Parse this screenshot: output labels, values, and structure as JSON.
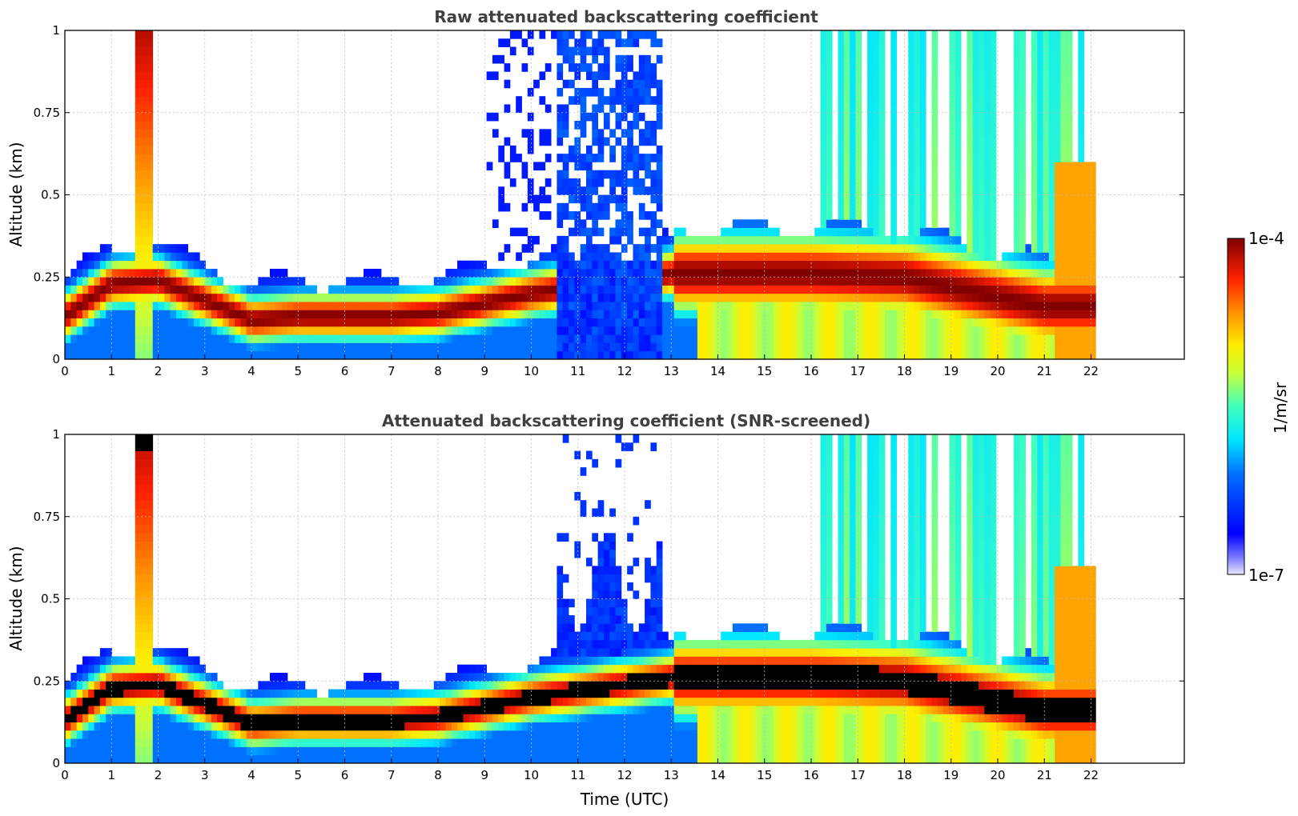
{
  "chart_data": {
    "type": "heatmap",
    "colormap": "jet",
    "xlabel": "Time (UTC)",
    "xlim": [
      0,
      24
    ],
    "x_ticks": [
      "0",
      "1",
      "2",
      "3",
      "4",
      "5",
      "6",
      "7",
      "8",
      "9",
      "10",
      "11",
      "12",
      "13",
      "14",
      "15",
      "16",
      "17",
      "18",
      "19",
      "20",
      "21",
      "22"
    ],
    "colorbar": {
      "label": "1/m/sr",
      "min_label": "1e-7",
      "max_label": "1e-4",
      "scale": "log"
    },
    "panels": [
      {
        "title": "Raw attenuated backscattering coefficient",
        "ylabel": "Altitude (km)",
        "ylim": [
          0,
          1
        ],
        "y_ticks": [
          "0",
          "0.25",
          "0.5",
          "0.75",
          "1"
        ],
        "data_end_hour": 22.1,
        "layer_peak_km": [
          {
            "t": 0,
            "km": 0.13
          },
          {
            "t": 1,
            "km": 0.23
          },
          {
            "t": 2,
            "km": 0.24
          },
          {
            "t": 3,
            "km": 0.18
          },
          {
            "t": 4,
            "km": 0.12
          },
          {
            "t": 5,
            "km": 0.13
          },
          {
            "t": 6,
            "km": 0.13
          },
          {
            "t": 7,
            "km": 0.13
          },
          {
            "t": 8,
            "km": 0.14
          },
          {
            "t": 9,
            "km": 0.17
          },
          {
            "t": 10,
            "km": 0.2
          },
          {
            "t": 13,
            "km": 0.26
          },
          {
            "t": 14,
            "km": 0.26
          },
          {
            "t": 16,
            "km": 0.26
          },
          {
            "t": 18,
            "km": 0.25
          },
          {
            "t": 20,
            "km": 0.19
          },
          {
            "t": 21,
            "km": 0.16
          }
        ]
      },
      {
        "title": "Attenuated backscattering coefficient (SNR-screened)",
        "ylabel": "Altitude (km)",
        "ylim": [
          0,
          1
        ],
        "y_ticks": [
          "0",
          "0.25",
          "0.5",
          "0.75",
          "1"
        ],
        "data_end_hour": 22.1,
        "layer_peak_km": [
          {
            "t": 0,
            "km": 0.13
          },
          {
            "t": 1,
            "km": 0.23
          },
          {
            "t": 2,
            "km": 0.24
          },
          {
            "t": 3,
            "km": 0.18
          },
          {
            "t": 4,
            "km": 0.12
          },
          {
            "t": 5,
            "km": 0.13
          },
          {
            "t": 6,
            "km": 0.13
          },
          {
            "t": 7,
            "km": 0.13
          },
          {
            "t": 8,
            "km": 0.14
          },
          {
            "t": 9,
            "km": 0.17
          },
          {
            "t": 10,
            "km": 0.2
          },
          {
            "t": 13,
            "km": 0.26
          },
          {
            "t": 14,
            "km": 0.26
          },
          {
            "t": 16,
            "km": 0.26
          },
          {
            "t": 18,
            "km": 0.25
          },
          {
            "t": 20,
            "km": 0.19
          },
          {
            "t": 21,
            "km": 0.16
          }
        ]
      }
    ]
  }
}
